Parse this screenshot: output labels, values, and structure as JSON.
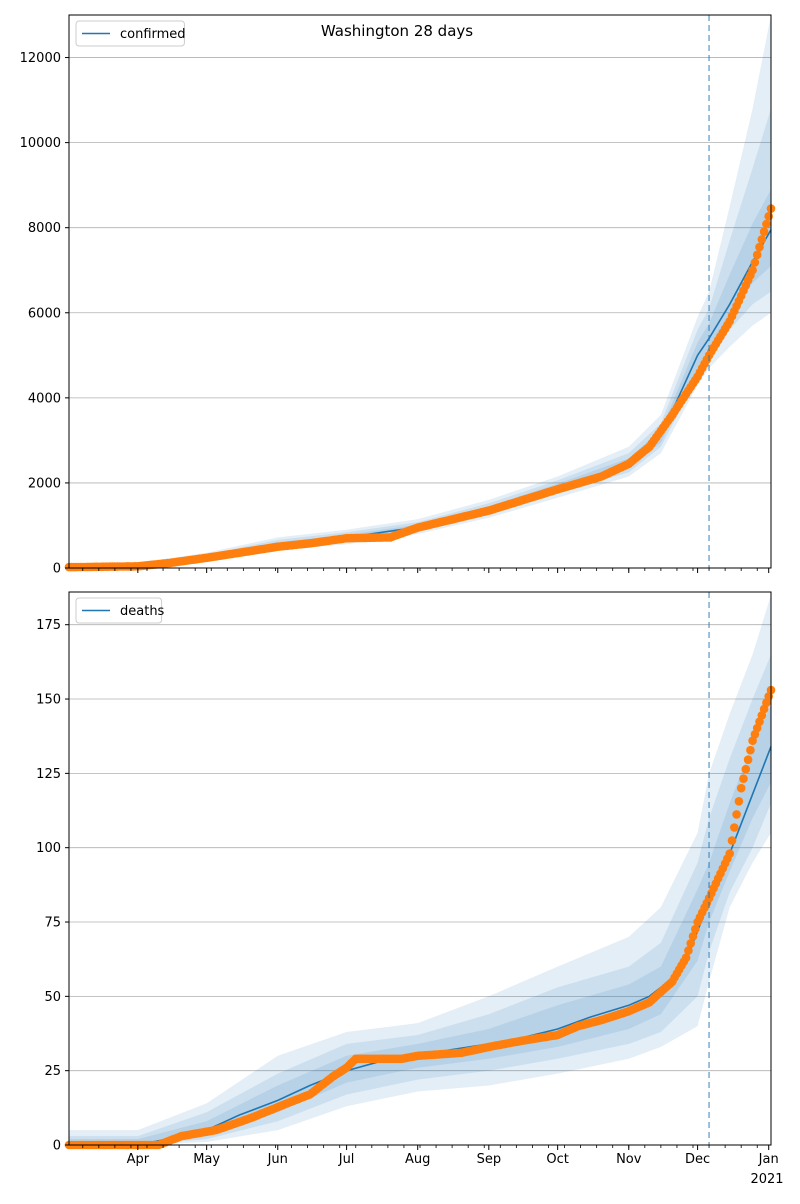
{
  "figure": {
    "title": "Washington 28 days"
  },
  "colors": {
    "fit_line": "#1f77b4",
    "band": "#1f77b4",
    "observed": "#ff7f0e",
    "grid": "#b0b0b0",
    "axis": "#000000",
    "vline": "#1f77b4"
  },
  "x_axis": {
    "ticks": [
      {
        "date": "2020-04-01",
        "label": "Apr"
      },
      {
        "date": "2020-05-01",
        "label": "May"
      },
      {
        "date": "2020-06-01",
        "label": "Jun"
      },
      {
        "date": "2020-07-01",
        "label": "Jul"
      },
      {
        "date": "2020-08-01",
        "label": "Aug"
      },
      {
        "date": "2020-09-01",
        "label": "Sep"
      },
      {
        "date": "2020-10-01",
        "label": "Oct"
      },
      {
        "date": "2020-11-01",
        "label": "Nov"
      },
      {
        "date": "2020-12-01",
        "label": "Dec"
      },
      {
        "date": "2021-01-01",
        "label": "Jan"
      }
    ],
    "year_label": "2021"
  },
  "chart_data": [
    {
      "type": "line",
      "legend": [
        "confirmed"
      ],
      "legend_position": "top-left",
      "xlim": [
        "2020-03-02",
        "2021-01-02"
      ],
      "ylim": [
        0,
        13000
      ],
      "yticks": [
        0,
        2000,
        4000,
        6000,
        8000,
        10000,
        12000
      ],
      "grid": "horizontal",
      "forecast_start": "2020-12-06",
      "fit": {
        "name": "confirmed",
        "x": [
          "2020-03-02",
          "2020-04-01",
          "2020-05-01",
          "2020-06-01",
          "2020-07-01",
          "2020-08-01",
          "2020-09-01",
          "2020-10-01",
          "2020-10-20",
          "2020-11-01",
          "2020-11-10",
          "2020-11-20",
          "2020-12-01",
          "2020-12-06",
          "2020-12-15",
          "2020-12-25",
          "2021-01-02"
        ],
        "y": [
          0,
          30,
          260,
          560,
          720,
          960,
          1380,
          1900,
          2200,
          2450,
          2800,
          3700,
          5000,
          5400,
          6200,
          7200,
          7950
        ],
        "band_x": [
          "2020-03-02",
          "2020-04-01",
          "2020-05-01",
          "2020-06-01",
          "2020-07-01",
          "2020-08-01",
          "2020-09-01",
          "2020-10-01",
          "2020-11-01",
          "2020-11-15",
          "2020-12-01",
          "2020-12-06",
          "2020-12-15",
          "2020-12-25",
          "2021-01-02"
        ],
        "bands": [
          {
            "low": [
              0,
              0,
              180,
              420,
              560,
              800,
              1180,
              1650,
              2150,
              2700,
              4300,
              4700,
              5200,
              5700,
              6000
            ],
            "high": [
              80,
              120,
              360,
              720,
              900,
              1150,
              1600,
              2150,
              2850,
              3600,
              5900,
              6500,
              8500,
              10800,
              13000
            ]
          },
          {
            "low": [
              0,
              10,
              210,
              470,
              620,
              860,
              1250,
              1750,
              2250,
              2850,
              4500,
              5000,
              5600,
              6200,
              6500
            ],
            "high": [
              60,
              90,
              320,
              660,
              840,
              1080,
              1520,
              2060,
              2700,
              3400,
              5600,
              6100,
              7700,
              9400,
              10800
            ]
          },
          {
            "low": [
              0,
              20,
              235,
              515,
              670,
              910,
              1310,
              1820,
              2350,
              2950,
              4700,
              5200,
              5900,
              6700,
              7100
            ],
            "high": [
              40,
              60,
              290,
              610,
              780,
              1020,
              1450,
              1980,
              2580,
              3250,
              5300,
              5750,
              6900,
              8100,
              8900
            ]
          }
        ]
      },
      "observed": {
        "start": "2020-03-02",
        "end": "2021-01-02",
        "anchors_x": [
          "2020-03-02",
          "2020-04-01",
          "2020-04-15",
          "2020-05-01",
          "2020-06-01",
          "2020-06-15",
          "2020-07-01",
          "2020-07-20",
          "2020-08-01",
          "2020-09-01",
          "2020-10-01",
          "2020-10-20",
          "2020-11-01",
          "2020-11-10",
          "2020-11-20",
          "2020-12-01",
          "2020-12-06",
          "2020-12-15",
          "2020-12-25",
          "2021-01-02"
        ],
        "anchors_y": [
          20,
          40,
          120,
          240,
          500,
          580,
          700,
          720,
          950,
          1350,
          1850,
          2150,
          2450,
          2850,
          3600,
          4500,
          5000,
          5800,
          7000,
          8450
        ]
      }
    },
    {
      "type": "line",
      "legend": [
        "deaths"
      ],
      "legend_position": "top-left",
      "xlim": [
        "2020-03-02",
        "2021-01-02"
      ],
      "ylim": [
        0,
        186
      ],
      "yticks": [
        0,
        25,
        50,
        75,
        100,
        125,
        150,
        175
      ],
      "grid": "horizontal",
      "forecast_start": "2020-12-06",
      "fit": {
        "name": "deaths",
        "x": [
          "2020-03-02",
          "2020-04-01",
          "2020-04-20",
          "2020-05-01",
          "2020-05-15",
          "2020-06-01",
          "2020-06-15",
          "2020-07-01",
          "2020-07-15",
          "2020-08-01",
          "2020-08-15",
          "2020-09-01",
          "2020-09-15",
          "2020-10-01",
          "2020-10-15",
          "2020-11-01",
          "2020-11-10",
          "2020-11-20",
          "2020-11-26",
          "2020-12-01",
          "2020-12-06",
          "2020-12-15",
          "2020-12-25",
          "2021-01-02"
        ],
        "y": [
          0,
          0,
          3,
          5,
          10,
          15,
          20,
          25,
          28,
          30,
          32,
          34,
          36,
          39,
          43,
          47,
          50,
          56,
          62,
          72,
          82,
          98,
          118,
          134
        ],
        "band_x": [
          "2020-03-02",
          "2020-04-01",
          "2020-05-01",
          "2020-06-01",
          "2020-07-01",
          "2020-08-01",
          "2020-09-01",
          "2020-10-01",
          "2020-11-01",
          "2020-11-15",
          "2020-12-01",
          "2020-12-06",
          "2020-12-15",
          "2020-12-25",
          "2021-01-02"
        ],
        "bands": [
          {
            "low": [
              0,
              0,
              1,
              5,
              13,
              18,
              20,
              24,
              29,
              33,
              40,
              55,
              80,
              95,
              105
            ],
            "high": [
              5,
              5,
              14,
              30,
              38,
              41,
              50,
              60,
              70,
              80,
              105,
              125,
              145,
              165,
              185
            ]
          },
          {
            "low": [
              0,
              0,
              2,
              8,
              17,
              22,
              25,
              29,
              34,
              38,
              50,
              65,
              85,
              100,
              115
            ],
            "high": [
              3,
              3,
              11,
              24,
              34,
              37,
              44,
              53,
              60,
              68,
              95,
              110,
              130,
              150,
              165
            ]
          },
          {
            "low": [
              0,
              0,
              3,
              11,
              21,
              26,
              29,
              33,
              39,
              44,
              62,
              75,
              92,
              110,
              122
            ],
            "high": [
              2,
              2,
              8,
              20,
              30,
              34,
              39,
              47,
              54,
              60,
              86,
              95,
              115,
              135,
              148
            ]
          }
        ]
      },
      "observed": {
        "start": "2020-03-02",
        "end": "2021-01-02",
        "anchors_x": [
          "2020-03-02",
          "2020-04-10",
          "2020-04-20",
          "2020-05-05",
          "2020-05-20",
          "2020-06-05",
          "2020-06-15",
          "2020-06-25",
          "2020-07-01",
          "2020-07-05",
          "2020-07-25",
          "2020-08-01",
          "2020-08-20",
          "2020-09-01",
          "2020-09-15",
          "2020-10-01",
          "2020-10-10",
          "2020-10-20",
          "2020-11-01",
          "2020-11-10",
          "2020-11-20",
          "2020-11-26",
          "2020-12-01",
          "2020-12-06",
          "2020-12-15",
          "2020-12-20",
          "2020-12-25",
          "2021-01-02"
        ],
        "anchors_y": [
          0,
          0,
          3,
          5,
          9,
          14,
          17,
          23,
          26,
          29,
          29,
          30,
          31,
          33,
          35,
          37,
          40,
          42,
          45,
          48,
          55,
          63,
          75,
          83,
          98,
          120,
          136,
          153
        ]
      }
    }
  ]
}
